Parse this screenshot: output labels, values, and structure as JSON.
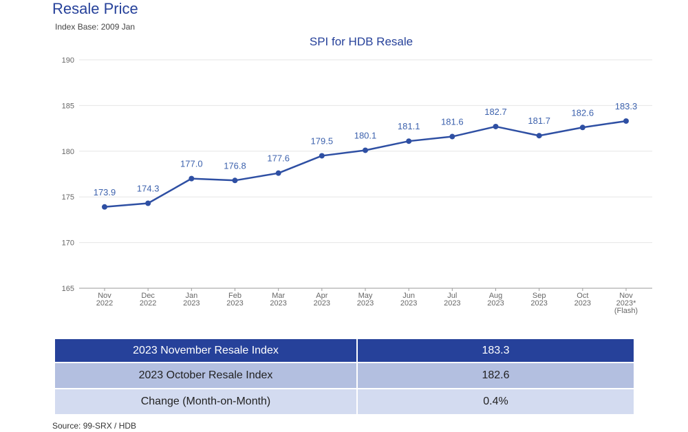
{
  "header": {
    "title": "Resale Price",
    "subtitle": "Index Base: 2009 Jan"
  },
  "chart_data": {
    "type": "line",
    "title": "SPI for HDB Resale",
    "xlabel": "",
    "ylabel": "",
    "ylim": [
      165,
      190
    ],
    "yticks": [
      165,
      170,
      175,
      180,
      185,
      190
    ],
    "categories": [
      [
        "Nov",
        "2022"
      ],
      [
        "Dec",
        "2022"
      ],
      [
        "Jan",
        "2023"
      ],
      [
        "Feb",
        "2023"
      ],
      [
        "Mar",
        "2023"
      ],
      [
        "Apr",
        "2023"
      ],
      [
        "May",
        "2023"
      ],
      [
        "Jun",
        "2023"
      ],
      [
        "Jul",
        "2023"
      ],
      [
        "Aug",
        "2023"
      ],
      [
        "Sep",
        "2023"
      ],
      [
        "Oct",
        "2023"
      ],
      [
        "Nov",
        "2023*",
        "(Flash)"
      ]
    ],
    "series": [
      {
        "name": "SPI for HDB Resale",
        "values": [
          173.9,
          174.3,
          177.0,
          176.8,
          177.6,
          179.5,
          180.1,
          181.1,
          181.6,
          182.7,
          181.7,
          182.6,
          183.3
        ],
        "labels": [
          "173.9",
          "174.3",
          "177.0",
          "176.8",
          "177.6",
          "179.5",
          "180.1",
          "181.1",
          "181.6",
          "182.7",
          "181.7",
          "182.6",
          "183.3"
        ]
      }
    ],
    "colors": {
      "line": "#2e4fa3",
      "labels": "#3d62ad",
      "grid": "#e6e6e6",
      "axis": "#999999",
      "ticks": "#666666"
    }
  },
  "table": {
    "rows": [
      {
        "label": "2023 November Resale Index",
        "value": "183.3"
      },
      {
        "label": "2023 October Resale Index",
        "value": "182.6"
      },
      {
        "label": "Change (Month-on-Month)",
        "value": "0.4%"
      }
    ]
  },
  "footer": {
    "source": "Source: 99-SRX / HDB"
  }
}
